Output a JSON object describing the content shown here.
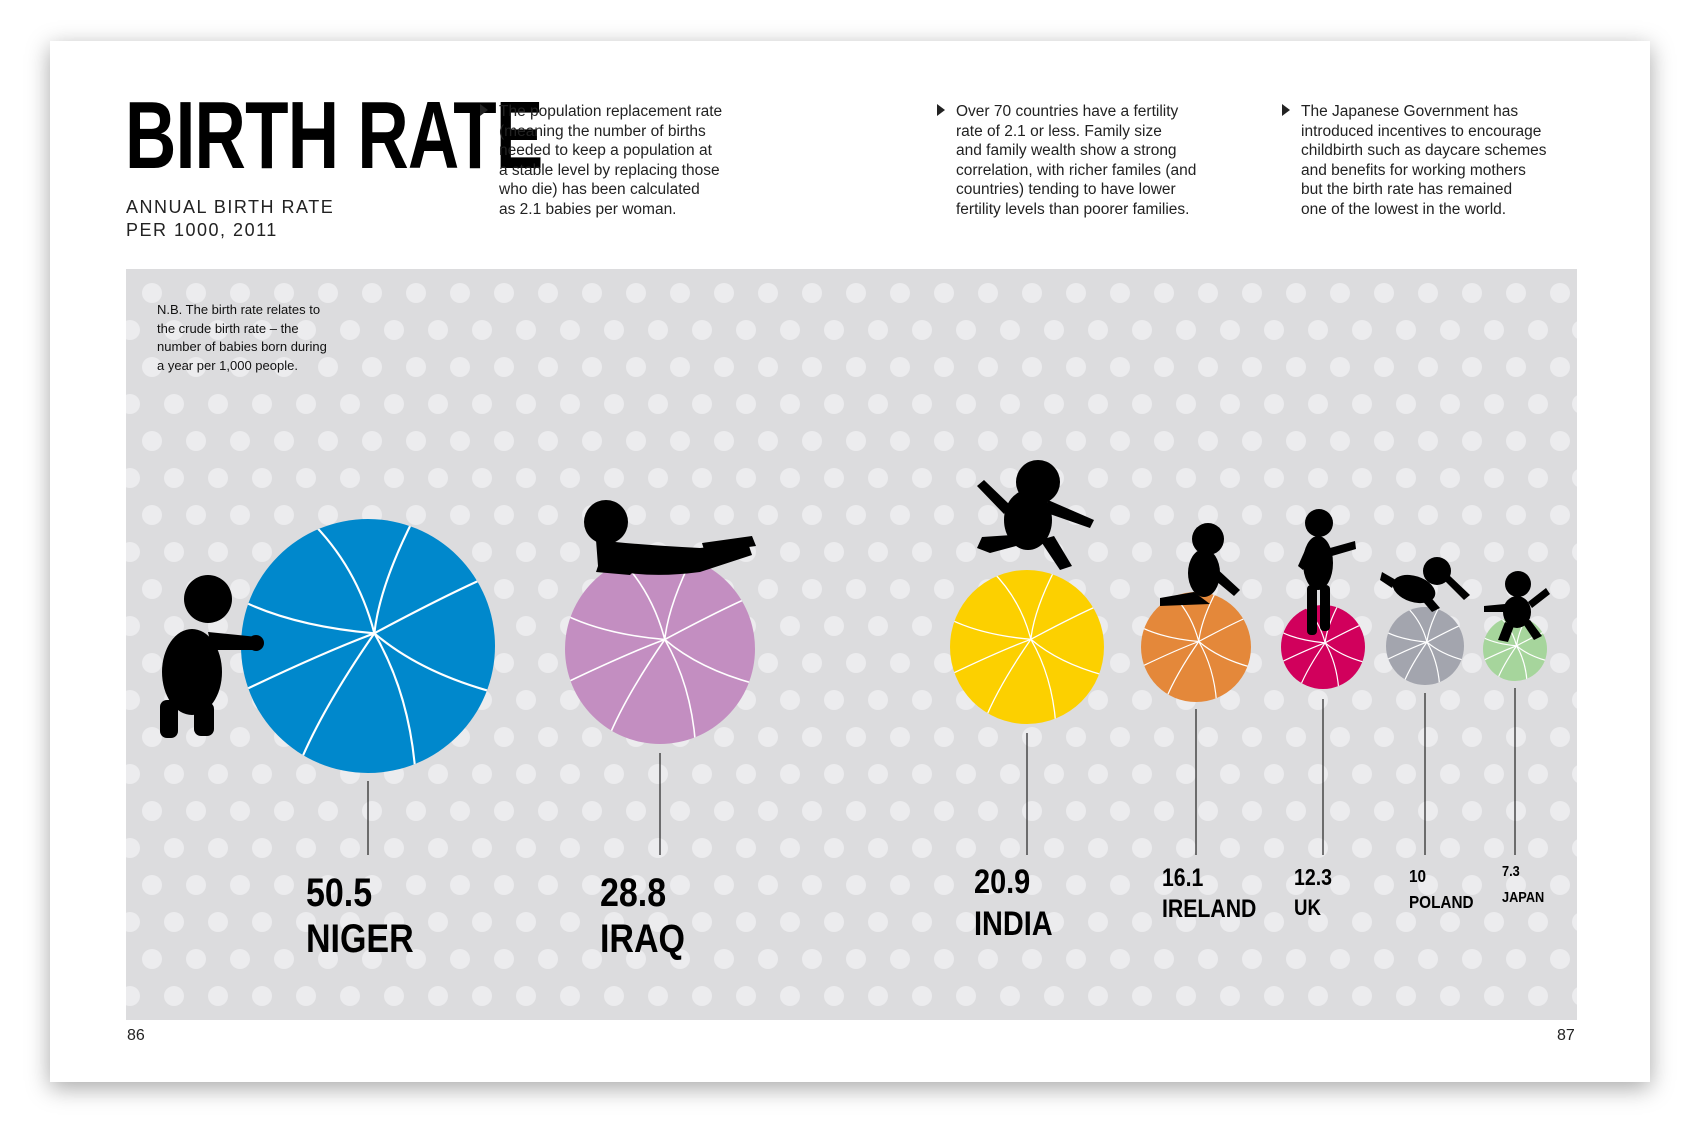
{
  "title": "BIRTH RATE",
  "subtitle_line1": "ANNUAL BIRTH RATE",
  "subtitle_line2": "PER 1000, 2011",
  "notes": [
    "The population replacement rate\n(meaning the number of births\nneeded to keep a population at\na stable level by replacing those\nwho die) has been calculated\nas 2.1 babies per woman.",
    "Over 70 countries have a fertility\nrate of 2.1 or less. Family size\nand family wealth show a strong\ncorrelation, with richer familes (and\ncountries) tending to have lower\nfertility levels than poorer families.",
    "The Japanese Government has\nintroduced incentives to encourage\nchildbirth such as daycare schemes\nand benefits for working mothers\nbut the birth rate has remained\none of the lowest in the world."
  ],
  "nb_note": "N.B. The birth rate relates to\nthe crude birth rate – the\nnumber of babies born during\na year per 1,000 people.",
  "page_left": "86",
  "page_right": "87",
  "chart_data": {
    "type": "bubble",
    "title": "BIRTH RATE",
    "subtitle": "ANNUAL BIRTH RATE PER 1000, 2011",
    "categories": [
      "NIGER",
      "IRAQ",
      "INDIA",
      "IRELAND",
      "UK",
      "POLAND",
      "JAPAN"
    ],
    "values": [
      50.5,
      28.8,
      20.9,
      16.1,
      12.3,
      10,
      7.3
    ],
    "value_labels": [
      "50.5",
      "28.8",
      "20.9",
      "16.1",
      "12.3",
      "10",
      "7.3"
    ],
    "colors": [
      "#0088cc",
      "#c38ec1",
      "#fcd000",
      "#e4883a",
      "#d1005c",
      "#a3a5ae",
      "#a6d59c"
    ],
    "background": "#dcdcde",
    "dot_color": "#ececee"
  }
}
